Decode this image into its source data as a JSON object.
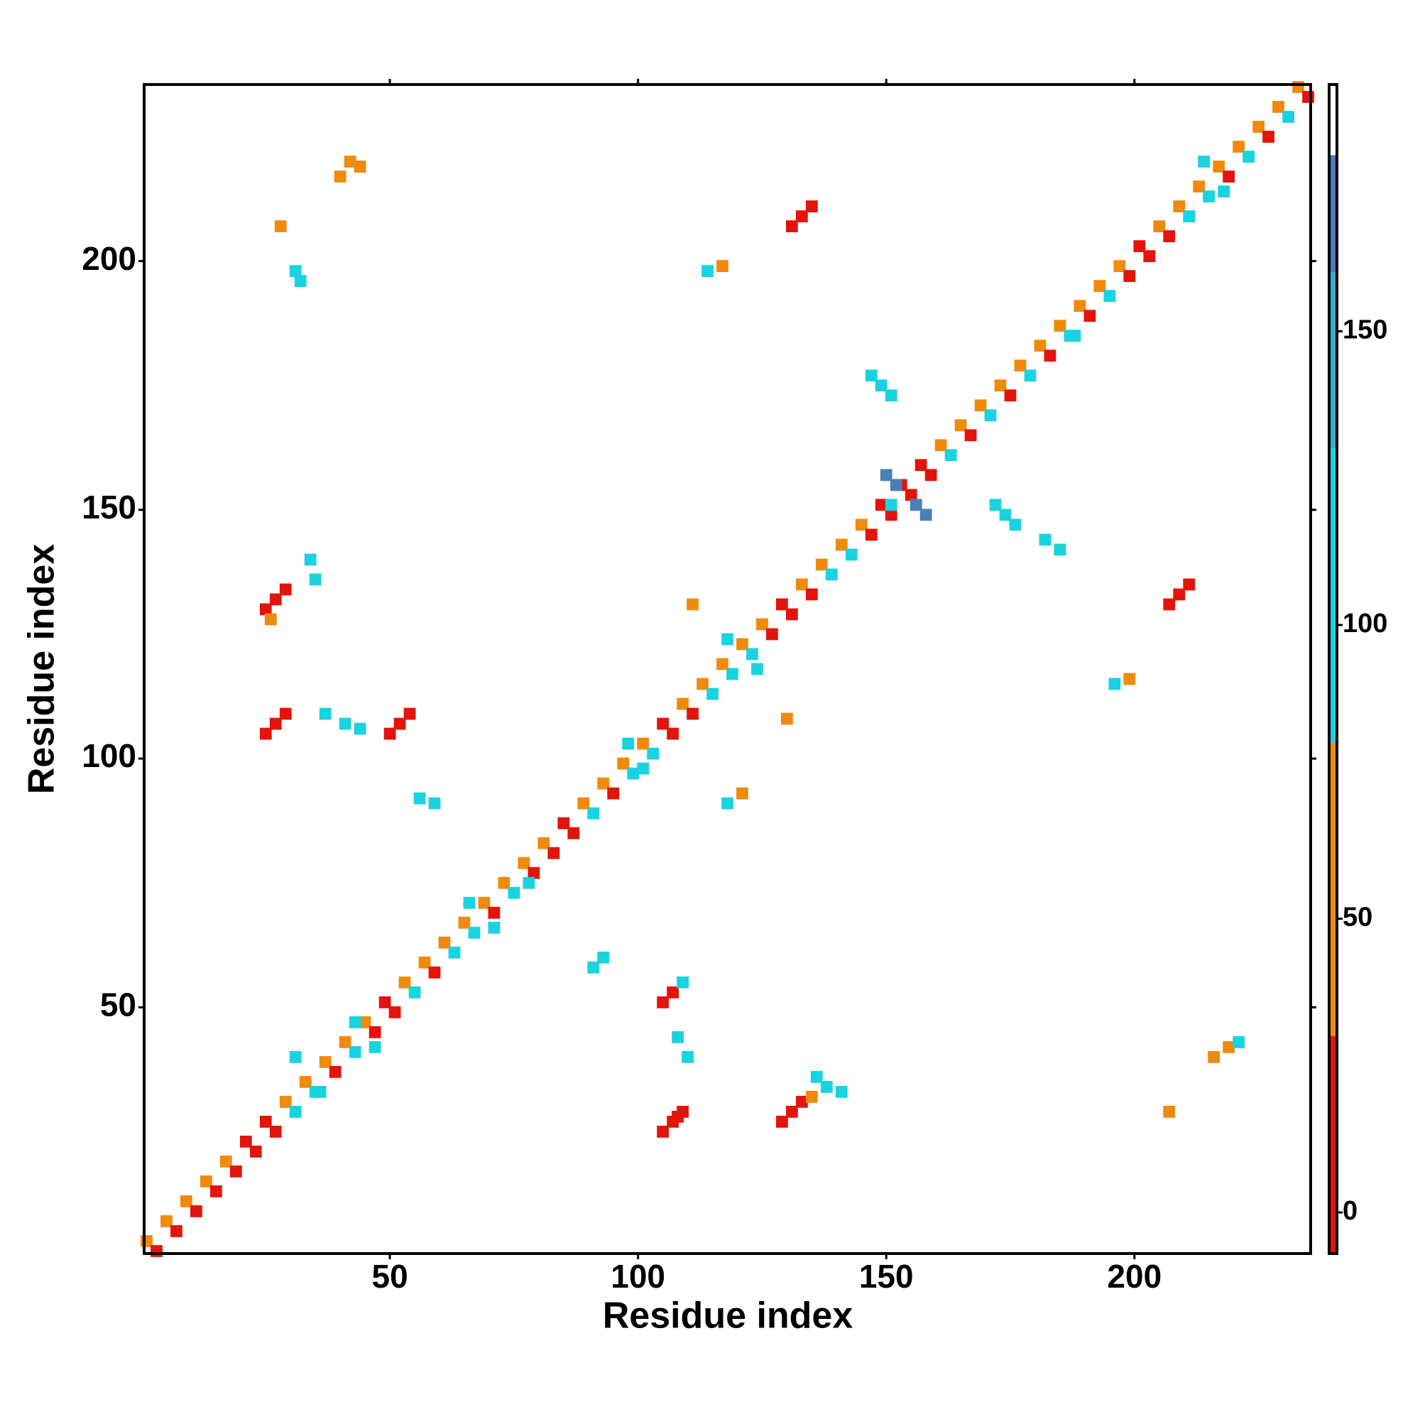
{
  "chart_data": {
    "type": "heatmap",
    "x_label": "Residue index",
    "y_label": "Residue index",
    "xlim": [
      0.5,
      235.5
    ],
    "ylim": [
      0.5,
      235.5
    ],
    "xticks": [
      50,
      100,
      150,
      200
    ],
    "yticks": [
      50,
      100,
      150,
      200
    ],
    "cells": [
      [
        1,
        3,
        55
      ],
      [
        3,
        1,
        20
      ],
      [
        5,
        7,
        55
      ],
      [
        7,
        5,
        20
      ],
      [
        9,
        11,
        55
      ],
      [
        11,
        9,
        20
      ],
      [
        13,
        15,
        55
      ],
      [
        15,
        13,
        20
      ],
      [
        17,
        19,
        55
      ],
      [
        19,
        17,
        20
      ],
      [
        21,
        23,
        10
      ],
      [
        23,
        21,
        10
      ],
      [
        25,
        27,
        10
      ],
      [
        27,
        25,
        10
      ],
      [
        29,
        31,
        55
      ],
      [
        31,
        29,
        100
      ],
      [
        33,
        35,
        55
      ],
      [
        35,
        33,
        100
      ],
      [
        37,
        39,
        55
      ],
      [
        39,
        37,
        20
      ],
      [
        41,
        43,
        55
      ],
      [
        43,
        41,
        100
      ],
      [
        45,
        47,
        55
      ],
      [
        47,
        45,
        20
      ],
      [
        49,
        51,
        10
      ],
      [
        51,
        49,
        20
      ],
      [
        53,
        55,
        55
      ],
      [
        55,
        53,
        100
      ],
      [
        57,
        59,
        55
      ],
      [
        59,
        57,
        20
      ],
      [
        61,
        63,
        55
      ],
      [
        63,
        61,
        100
      ],
      [
        65,
        67,
        55
      ],
      [
        67,
        65,
        100
      ],
      [
        69,
        71,
        55
      ],
      [
        71,
        69,
        20
      ],
      [
        73,
        75,
        55
      ],
      [
        75,
        73,
        100
      ],
      [
        77,
        79,
        55
      ],
      [
        79,
        77,
        20
      ],
      [
        81,
        83,
        55
      ],
      [
        83,
        81,
        20
      ],
      [
        85,
        87,
        10
      ],
      [
        87,
        85,
        10
      ],
      [
        89,
        91,
        55
      ],
      [
        91,
        89,
        100
      ],
      [
        93,
        95,
        55
      ],
      [
        95,
        93,
        20
      ],
      [
        97,
        99,
        55
      ],
      [
        99,
        97,
        100
      ],
      [
        101,
        103,
        55
      ],
      [
        103,
        101,
        100
      ],
      [
        105,
        107,
        10
      ],
      [
        107,
        105,
        20
      ],
      [
        109,
        111,
        55
      ],
      [
        111,
        109,
        20
      ],
      [
        113,
        115,
        55
      ],
      [
        115,
        113,
        100
      ],
      [
        117,
        119,
        55
      ],
      [
        119,
        117,
        100
      ],
      [
        121,
        123,
        55
      ],
      [
        123,
        121,
        100
      ],
      [
        125,
        127,
        55
      ],
      [
        127,
        125,
        20
      ],
      [
        129,
        131,
        10
      ],
      [
        131,
        129,
        10
      ],
      [
        133,
        135,
        55
      ],
      [
        135,
        133,
        20
      ],
      [
        137,
        139,
        55
      ],
      [
        139,
        137,
        100
      ],
      [
        141,
        143,
        55
      ],
      [
        143,
        141,
        100
      ],
      [
        145,
        147,
        55
      ],
      [
        147,
        145,
        20
      ],
      [
        149,
        151,
        10
      ],
      [
        151,
        149,
        10
      ],
      [
        153,
        155,
        10
      ],
      [
        155,
        153,
        20
      ],
      [
        157,
        159,
        10
      ],
      [
        159,
        157,
        20
      ],
      [
        161,
        163,
        55
      ],
      [
        163,
        161,
        100
      ],
      [
        165,
        167,
        55
      ],
      [
        167,
        165,
        20
      ],
      [
        169,
        171,
        55
      ],
      [
        171,
        169,
        100
      ],
      [
        173,
        175,
        55
      ],
      [
        175,
        173,
        20
      ],
      [
        177,
        179,
        55
      ],
      [
        179,
        177,
        100
      ],
      [
        181,
        183,
        55
      ],
      [
        183,
        181,
        20
      ],
      [
        185,
        187,
        55
      ],
      [
        187,
        185,
        100
      ],
      [
        189,
        191,
        55
      ],
      [
        191,
        189,
        20
      ],
      [
        193,
        195,
        55
      ],
      [
        195,
        193,
        100
      ],
      [
        197,
        199,
        55
      ],
      [
        199,
        197,
        20
      ],
      [
        201,
        203,
        10
      ],
      [
        203,
        201,
        10
      ],
      [
        205,
        207,
        55
      ],
      [
        207,
        205,
        20
      ],
      [
        209,
        211,
        55
      ],
      [
        211,
        209,
        100
      ],
      [
        213,
        215,
        55
      ],
      [
        215,
        213,
        100
      ],
      [
        217,
        219,
        55
      ],
      [
        219,
        217,
        20
      ],
      [
        221,
        223,
        55
      ],
      [
        223,
        221,
        100
      ],
      [
        225,
        227,
        55
      ],
      [
        227,
        225,
        20
      ],
      [
        229,
        231,
        55
      ],
      [
        231,
        229,
        100
      ],
      [
        233,
        235,
        55
      ],
      [
        235,
        233,
        20
      ],
      [
        105,
        25,
        10
      ],
      [
        107,
        27,
        10
      ],
      [
        109,
        29,
        10
      ],
      [
        108,
        28,
        20
      ],
      [
        129,
        27,
        10
      ],
      [
        131,
        29,
        10
      ],
      [
        133,
        31,
        10
      ],
      [
        135,
        32,
        50
      ],
      [
        105,
        51,
        10
      ],
      [
        107,
        53,
        10
      ],
      [
        109,
        55,
        100
      ],
      [
        25,
        130,
        10
      ],
      [
        27,
        132,
        10
      ],
      [
        29,
        134,
        10
      ],
      [
        26,
        128,
        60
      ],
      [
        25,
        105,
        10
      ],
      [
        27,
        107,
        10
      ],
      [
        29,
        109,
        10
      ],
      [
        50,
        105,
        10
      ],
      [
        52,
        107,
        10
      ],
      [
        54,
        109,
        10
      ],
      [
        131,
        207,
        10
      ],
      [
        133,
        209,
        10
      ],
      [
        135,
        211,
        10
      ],
      [
        207,
        131,
        10
      ],
      [
        209,
        133,
        10
      ],
      [
        211,
        135,
        10
      ],
      [
        150,
        157,
        165
      ],
      [
        152,
        155,
        165
      ],
      [
        156,
        151,
        165
      ],
      [
        158,
        149,
        165
      ],
      [
        151,
        151,
        100
      ],
      [
        147,
        177,
        100
      ],
      [
        149,
        175,
        100
      ],
      [
        151,
        173,
        100
      ],
      [
        172,
        151,
        100
      ],
      [
        174,
        149,
        100
      ],
      [
        176,
        147,
        100
      ],
      [
        32,
        196,
        120
      ],
      [
        31,
        198,
        110
      ],
      [
        40,
        217,
        60
      ],
      [
        42,
        220,
        60
      ],
      [
        44,
        219,
        40
      ],
      [
        28,
        207,
        60
      ],
      [
        114,
        198,
        100
      ],
      [
        117,
        199,
        40
      ],
      [
        196,
        115,
        100
      ],
      [
        199,
        116,
        40
      ],
      [
        216,
        40,
        60
      ],
      [
        219,
        42,
        40
      ],
      [
        221,
        43,
        100
      ],
      [
        207,
        29,
        60
      ],
      [
        138,
        34,
        100
      ],
      [
        141,
        33,
        120
      ],
      [
        136,
        36,
        110
      ],
      [
        108,
        44,
        100
      ],
      [
        110,
        40,
        100
      ],
      [
        91,
        58,
        100
      ],
      [
        93,
        60,
        120
      ],
      [
        56,
        92,
        100
      ],
      [
        59,
        91,
        120
      ],
      [
        37,
        109,
        100
      ],
      [
        41,
        107,
        100
      ],
      [
        44,
        106,
        100
      ],
      [
        35,
        136,
        120
      ],
      [
        34,
        140,
        100
      ],
      [
        182,
        144,
        100
      ],
      [
        185,
        142,
        100
      ],
      [
        118,
        91,
        100
      ],
      [
        121,
        93,
        60
      ],
      [
        111,
        131,
        50
      ],
      [
        130,
        108,
        50
      ],
      [
        31,
        40,
        100
      ],
      [
        36,
        33,
        100
      ],
      [
        66,
        71,
        100
      ],
      [
        71,
        66,
        100
      ],
      [
        78,
        75,
        110
      ],
      [
        101,
        98,
        100
      ],
      [
        98,
        103,
        110
      ],
      [
        118,
        124,
        110
      ],
      [
        124,
        118,
        120
      ],
      [
        188,
        185,
        100
      ],
      [
        218,
        214,
        100
      ],
      [
        214,
        220,
        100
      ],
      [
        43,
        47,
        100
      ],
      [
        47,
        42,
        110
      ]
    ],
    "colorbar": {
      "ylim": [
        -7,
        192
      ],
      "yticks": [
        0,
        50,
        100,
        150
      ],
      "bands": [
        {
          "from": -7,
          "to": 30,
          "color": "#e3140b"
        },
        {
          "from": 30,
          "to": 80,
          "color": "#f08a0c"
        },
        {
          "from": 80,
          "to": 130,
          "color": "#19d3e0"
        },
        {
          "from": 130,
          "to": 160,
          "color": "#2fb0d6"
        },
        {
          "from": 160,
          "to": 180,
          "color": "#4a7fb5"
        },
        {
          "from": 180,
          "to": 192,
          "color": "#ffffff"
        }
      ]
    }
  }
}
